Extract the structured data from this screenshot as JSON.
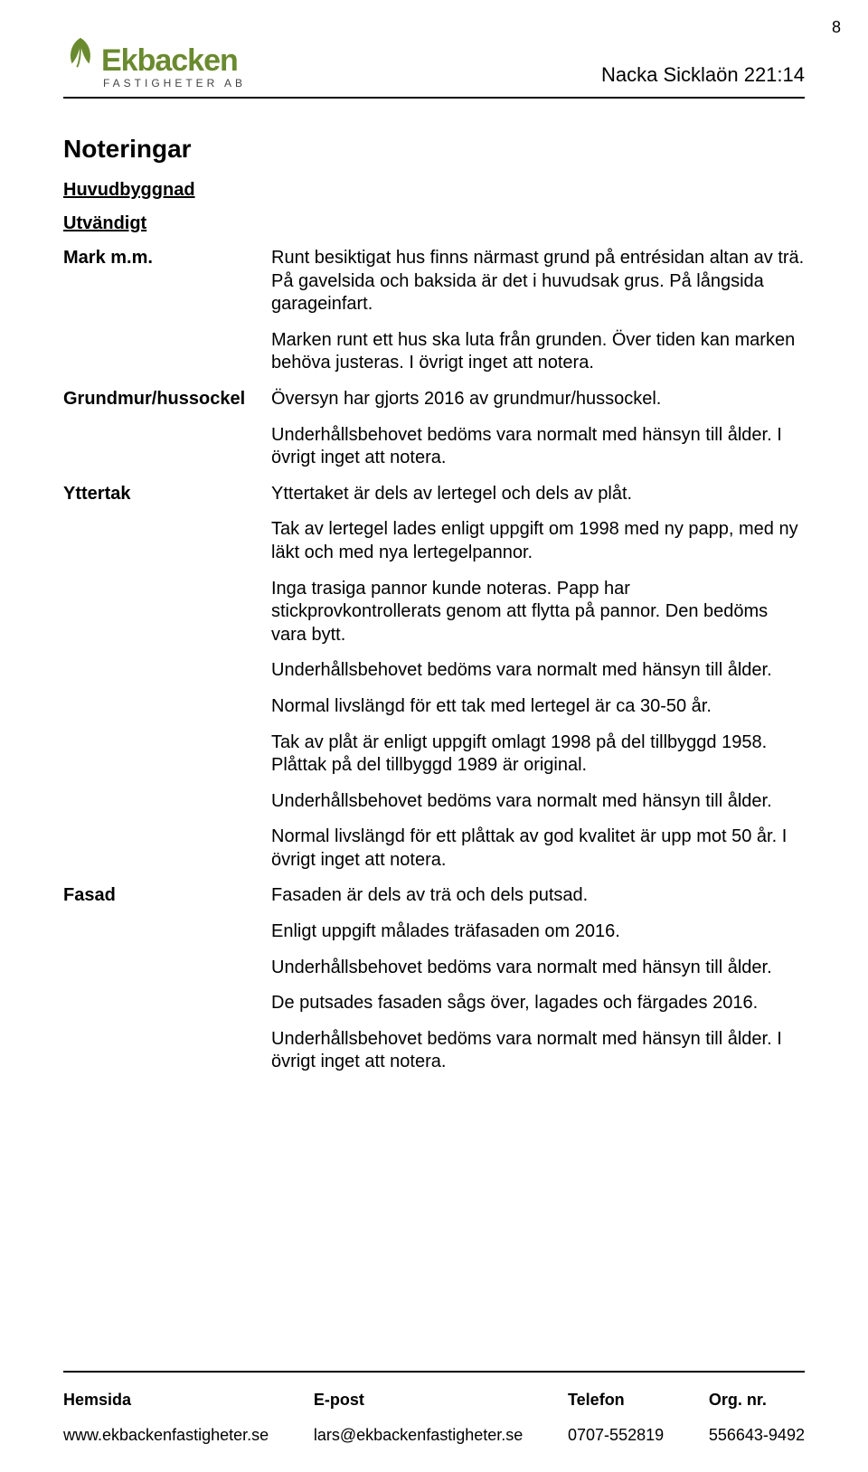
{
  "page_number": "8",
  "logo": {
    "name": "Ekbacken",
    "subtitle": "FASTIGHETER AB",
    "color": "#6a8a2f"
  },
  "header_title": "Nacka Sicklaön 221:14",
  "h1": "Noteringar",
  "h2": "Huvudbyggnad",
  "h3": "Utvändigt",
  "rows": [
    {
      "label": "Mark m.m.",
      "paras": [
        "Runt besiktigat hus finns närmast grund på entrésidan altan av trä. På gavelsida och baksida är det i huvudsak grus. På långsida garageinfart.",
        "Marken runt ett hus ska luta från grunden. Över tiden kan marken behöva justeras. I övrigt inget att notera."
      ]
    },
    {
      "label": "Grundmur/hussockel",
      "paras": [
        "Översyn har gjorts 2016 av grundmur/hussockel.",
        "Underhållsbehovet bedöms vara normalt med hänsyn till ålder. I övrigt inget att notera."
      ]
    },
    {
      "label": "Yttertak",
      "paras": [
        "Yttertaket är dels av lertegel och dels av plåt.",
        "Tak av lertegel lades enligt uppgift om 1998 med ny papp, med ny läkt och med nya lertegelpannor.",
        "Inga trasiga pannor kunde noteras. Papp har stickprovkontrollerats genom att flytta på pannor. Den bedöms vara bytt.",
        "Underhållsbehovet bedöms vara normalt med hänsyn till ålder.",
        "Normal livslängd för ett tak med lertegel är ca 30-50 år.",
        "Tak av plåt är enligt uppgift omlagt 1998 på del tillbyggd 1958. Plåttak på del tillbyggd 1989 är original.",
        "Underhållsbehovet bedöms vara normalt med hänsyn till ålder.",
        "Normal livslängd för ett plåttak av god kvalitet är upp mot 50 år. I övrigt inget att notera."
      ]
    },
    {
      "label": "Fasad",
      "paras": [
        "Fasaden är dels av trä och dels putsad.",
        "Enligt uppgift målades träfasaden om 2016.",
        "Underhållsbehovet bedöms vara normalt med hänsyn till ålder.",
        "De putsades fasaden sågs över, lagades och färgades 2016.",
        "Underhållsbehovet bedöms vara normalt med hänsyn till ålder. I övrigt inget att notera."
      ]
    }
  ],
  "footer": {
    "cols": [
      {
        "label": "Hemsida",
        "value": "www.ekbackenfastigheter.se"
      },
      {
        "label": "E-post",
        "value": "lars@ekbackenfastigheter.se"
      },
      {
        "label": "Telefon",
        "value": "0707-552819"
      },
      {
        "label": "Org. nr.",
        "value": "556643-9492"
      }
    ]
  }
}
